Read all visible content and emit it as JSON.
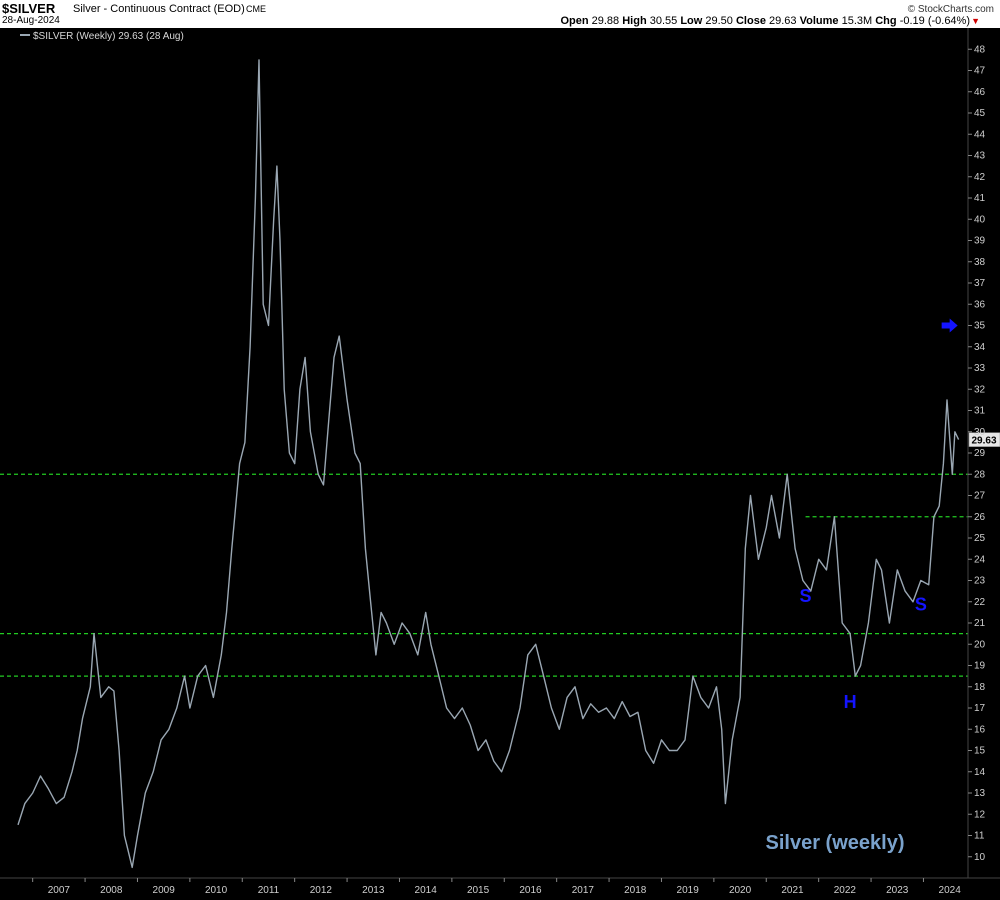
{
  "header": {
    "symbol": "$SILVER",
    "description": "Silver - Continuous Contract (EOD)",
    "exchange": "CME",
    "date": "28-Aug-2024",
    "brand": "© StockCharts.com",
    "open_label": "Open",
    "open": "29.88",
    "high_label": "High",
    "high": "30.55",
    "low_label": "Low",
    "low": "29.50",
    "close_label": "Close",
    "close": "29.63",
    "volume_label": "Volume",
    "volume": "15.3M",
    "chg_label": "Chg",
    "chg": "-0.19 (-0.64%)",
    "chg_icon": "down-triangle-icon"
  },
  "colors": {
    "background": "#000000",
    "price_line": "#9aa7b3",
    "support_lines": "#22cc22",
    "annotation": "#1414ff",
    "title": "#7aa2cc",
    "axis_text": "#cfcfcf"
  },
  "chart_data": {
    "type": "line",
    "legend": "$SILVER (Weekly) 29.63 (28 Aug)",
    "last_value_label": "29.63",
    "title": "Silver (weekly)",
    "ylim": [
      9,
      49
    ],
    "xlim": [
      2006.72,
      2024.85
    ],
    "x_ticks": [
      "2007",
      "2008",
      "2009",
      "2010",
      "2011",
      "2012",
      "2013",
      "2014",
      "2015",
      "2016",
      "2017",
      "2018",
      "2019",
      "2020",
      "2021",
      "2022",
      "2023",
      "2024"
    ],
    "y_ticks": [
      10,
      11,
      12,
      13,
      14,
      15,
      16,
      17,
      18,
      19,
      20,
      21,
      22,
      23,
      24,
      25,
      26,
      27,
      28,
      29,
      30,
      31,
      32,
      33,
      34,
      35,
      36,
      37,
      38,
      39,
      40,
      41,
      42,
      43,
      44,
      45,
      46,
      47,
      48
    ],
    "series": [
      {
        "x": [
          2006.72,
          2006.85,
          2007.0,
          2007.15,
          2007.3,
          2007.45,
          2007.6,
          2007.75,
          2007.85,
          2007.95,
          2008.1,
          2008.17,
          2008.3,
          2008.45,
          2008.55,
          2008.65,
          2008.75,
          2008.8,
          2008.9,
          2009.0,
          2009.15,
          2009.3,
          2009.45,
          2009.6,
          2009.75,
          2009.9,
          2010.0,
          2010.15,
          2010.3,
          2010.45,
          2010.6,
          2010.7,
          2010.8,
          2010.95,
          2011.05,
          2011.15,
          2011.25,
          2011.32,
          2011.4,
          2011.5,
          2011.6,
          2011.66,
          2011.72,
          2011.8,
          2011.9,
          2012.0,
          2012.1,
          2012.2,
          2012.3,
          2012.45,
          2012.55,
          2012.65,
          2012.75,
          2012.85,
          2013.0,
          2013.15,
          2013.25,
          2013.35,
          2013.45,
          2013.55,
          2013.65,
          2013.75,
          2013.9,
          2014.05,
          2014.2,
          2014.35,
          2014.5,
          2014.6,
          2014.75,
          2014.9,
          2015.05,
          2015.2,
          2015.35,
          2015.5,
          2015.65,
          2015.8,
          2015.95,
          2016.1,
          2016.3,
          2016.45,
          2016.6,
          2016.75,
          2016.9,
          2017.05,
          2017.2,
          2017.35,
          2017.5,
          2017.65,
          2017.8,
          2017.95,
          2018.1,
          2018.25,
          2018.4,
          2018.55,
          2018.7,
          2018.85,
          2019.0,
          2019.15,
          2019.3,
          2019.45,
          2019.6,
          2019.75,
          2019.9,
          2020.05,
          2020.15,
          2020.22,
          2020.35,
          2020.5,
          2020.6,
          2020.7,
          2020.85,
          2021.0,
          2021.1,
          2021.25,
          2021.4,
          2021.55,
          2021.7,
          2021.85,
          2022.0,
          2022.15,
          2022.3,
          2022.45,
          2022.6,
          2022.7,
          2022.8,
          2022.95,
          2023.1,
          2023.2,
          2023.35,
          2023.5,
          2023.65,
          2023.8,
          2023.95,
          2024.1,
          2024.2,
          2024.3,
          2024.38,
          2024.45,
          2024.55,
          2024.6,
          2024.67
        ],
        "values": [
          11.5,
          12.5,
          13.0,
          13.8,
          13.2,
          12.5,
          12.8,
          14.0,
          15.0,
          16.5,
          18.0,
          20.5,
          17.5,
          18.0,
          17.8,
          15.0,
          11.0,
          10.5,
          9.5,
          11.0,
          13.0,
          14.0,
          15.5,
          16.0,
          17.0,
          18.5,
          17.0,
          18.5,
          19.0,
          17.5,
          19.5,
          21.5,
          24.5,
          28.5,
          29.5,
          34.0,
          41.0,
          47.5,
          36.0,
          35.0,
          40.0,
          42.5,
          39.0,
          32.0,
          29.0,
          28.5,
          32.0,
          33.5,
          30.0,
          28.0,
          27.5,
          30.5,
          33.5,
          34.5,
          31.5,
          29.0,
          28.5,
          24.5,
          22.0,
          19.5,
          21.5,
          21.0,
          20.0,
          21.0,
          20.5,
          19.5,
          21.5,
          20.0,
          18.5,
          17.0,
          16.5,
          17.0,
          16.2,
          15.0,
          15.5,
          14.5,
          14.0,
          15.0,
          17.0,
          19.5,
          20.0,
          18.5,
          17.0,
          16.0,
          17.5,
          18.0,
          16.5,
          17.2,
          16.8,
          17.0,
          16.5,
          17.3,
          16.6,
          16.8,
          15.0,
          14.4,
          15.5,
          15.0,
          15.0,
          15.5,
          18.5,
          17.5,
          17.0,
          18.0,
          16.0,
          12.5,
          15.5,
          17.5,
          24.5,
          27.0,
          24.0,
          25.5,
          27.0,
          25.0,
          28.0,
          24.5,
          23.0,
          22.5,
          24.0,
          23.5,
          26.0,
          21.0,
          20.5,
          18.5,
          19.0,
          21.0,
          24.0,
          23.5,
          21.0,
          23.5,
          22.5,
          22.0,
          23.0,
          22.8,
          26.0,
          26.5,
          28.5,
          31.5,
          28.0,
          30.0,
          29.63
        ]
      }
    ],
    "levels": [
      28,
      20.5,
      18.5
    ],
    "short_level": {
      "value": 26,
      "x_start": 2021.75
    },
    "annotations": [
      {
        "text": "S",
        "x": 2021.75,
        "y": 22.0
      },
      {
        "text": "H",
        "x": 2022.6,
        "y": 17.0
      },
      {
        "text": "S",
        "x": 2023.95,
        "y": 21.6
      }
    ],
    "arrow": {
      "x": 2024.5,
      "y": 35.0,
      "icon": "right-arrow-icon"
    }
  }
}
